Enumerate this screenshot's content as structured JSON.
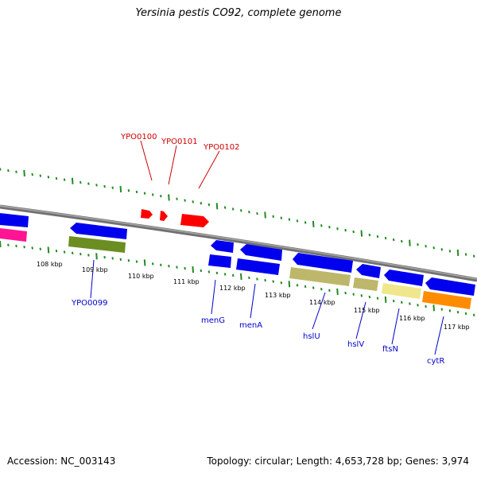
{
  "title": "Yersinia pestis CO92, complete genome",
  "footer": {
    "accession": "Accession: NC_003143",
    "summary": "Topology: circular; Length: 4,653,728 bp; Genes: 3,974"
  },
  "colors": {
    "backbone": "#808080",
    "tick": "#228b22",
    "forward_cds": "#0000ff",
    "highlight": "#ff0000",
    "label_red": "#cc0000",
    "label_blue": "#0000cc"
  },
  "ruler_labels": [
    "108 kbp",
    "109 kbp",
    "110 kbp",
    "111 kbp",
    "112 kbp",
    "113 kbp",
    "114 kbp",
    "115 kbp",
    "116 kbp",
    "117 kbp"
  ],
  "red_labels": [
    "YPO0100",
    "YPO0101",
    "YPO0102"
  ],
  "blue_labels": [
    "YPO0099",
    "menG",
    "menA",
    "hslU",
    "hslV",
    "ftsN",
    "cytR"
  ]
}
